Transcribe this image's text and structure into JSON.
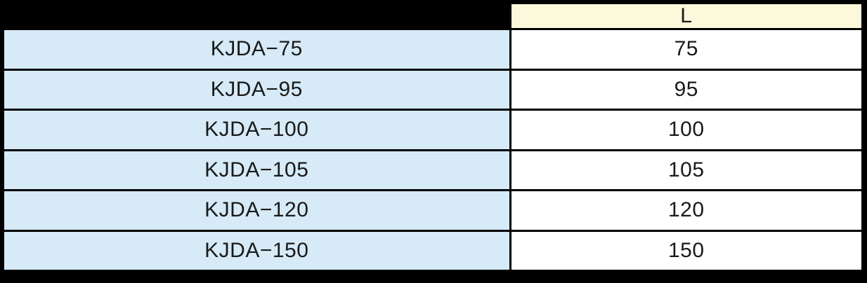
{
  "table": {
    "columns": [
      {
        "key": "model",
        "label": ""
      },
      {
        "key": "l",
        "label": "L"
      }
    ],
    "rows": [
      {
        "model": "KJDA−75",
        "l": "75"
      },
      {
        "model": "KJDA−95",
        "l": "95"
      },
      {
        "model": "KJDA−100",
        "l": "100"
      },
      {
        "model": "KJDA−105",
        "l": "105"
      },
      {
        "model": "KJDA−120",
        "l": "120"
      },
      {
        "model": "KJDA−150",
        "l": "150"
      }
    ],
    "colors": {
      "frame": "#000000",
      "header_fill": "#FCF8DB",
      "model_fill": "#D6EAF7",
      "value_fill": "#FFFFFF",
      "text": "#1a1a1a"
    }
  }
}
